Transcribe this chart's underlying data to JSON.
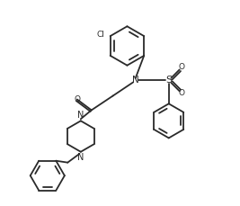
{
  "bg_color": "#ffffff",
  "line_color": "#2a2a2a",
  "line_width": 1.3,
  "fig_width": 2.67,
  "fig_height": 2.29,
  "dpi": 100,
  "xlim": [
    0,
    10
  ],
  "ylim": [
    0,
    8.6
  ]
}
